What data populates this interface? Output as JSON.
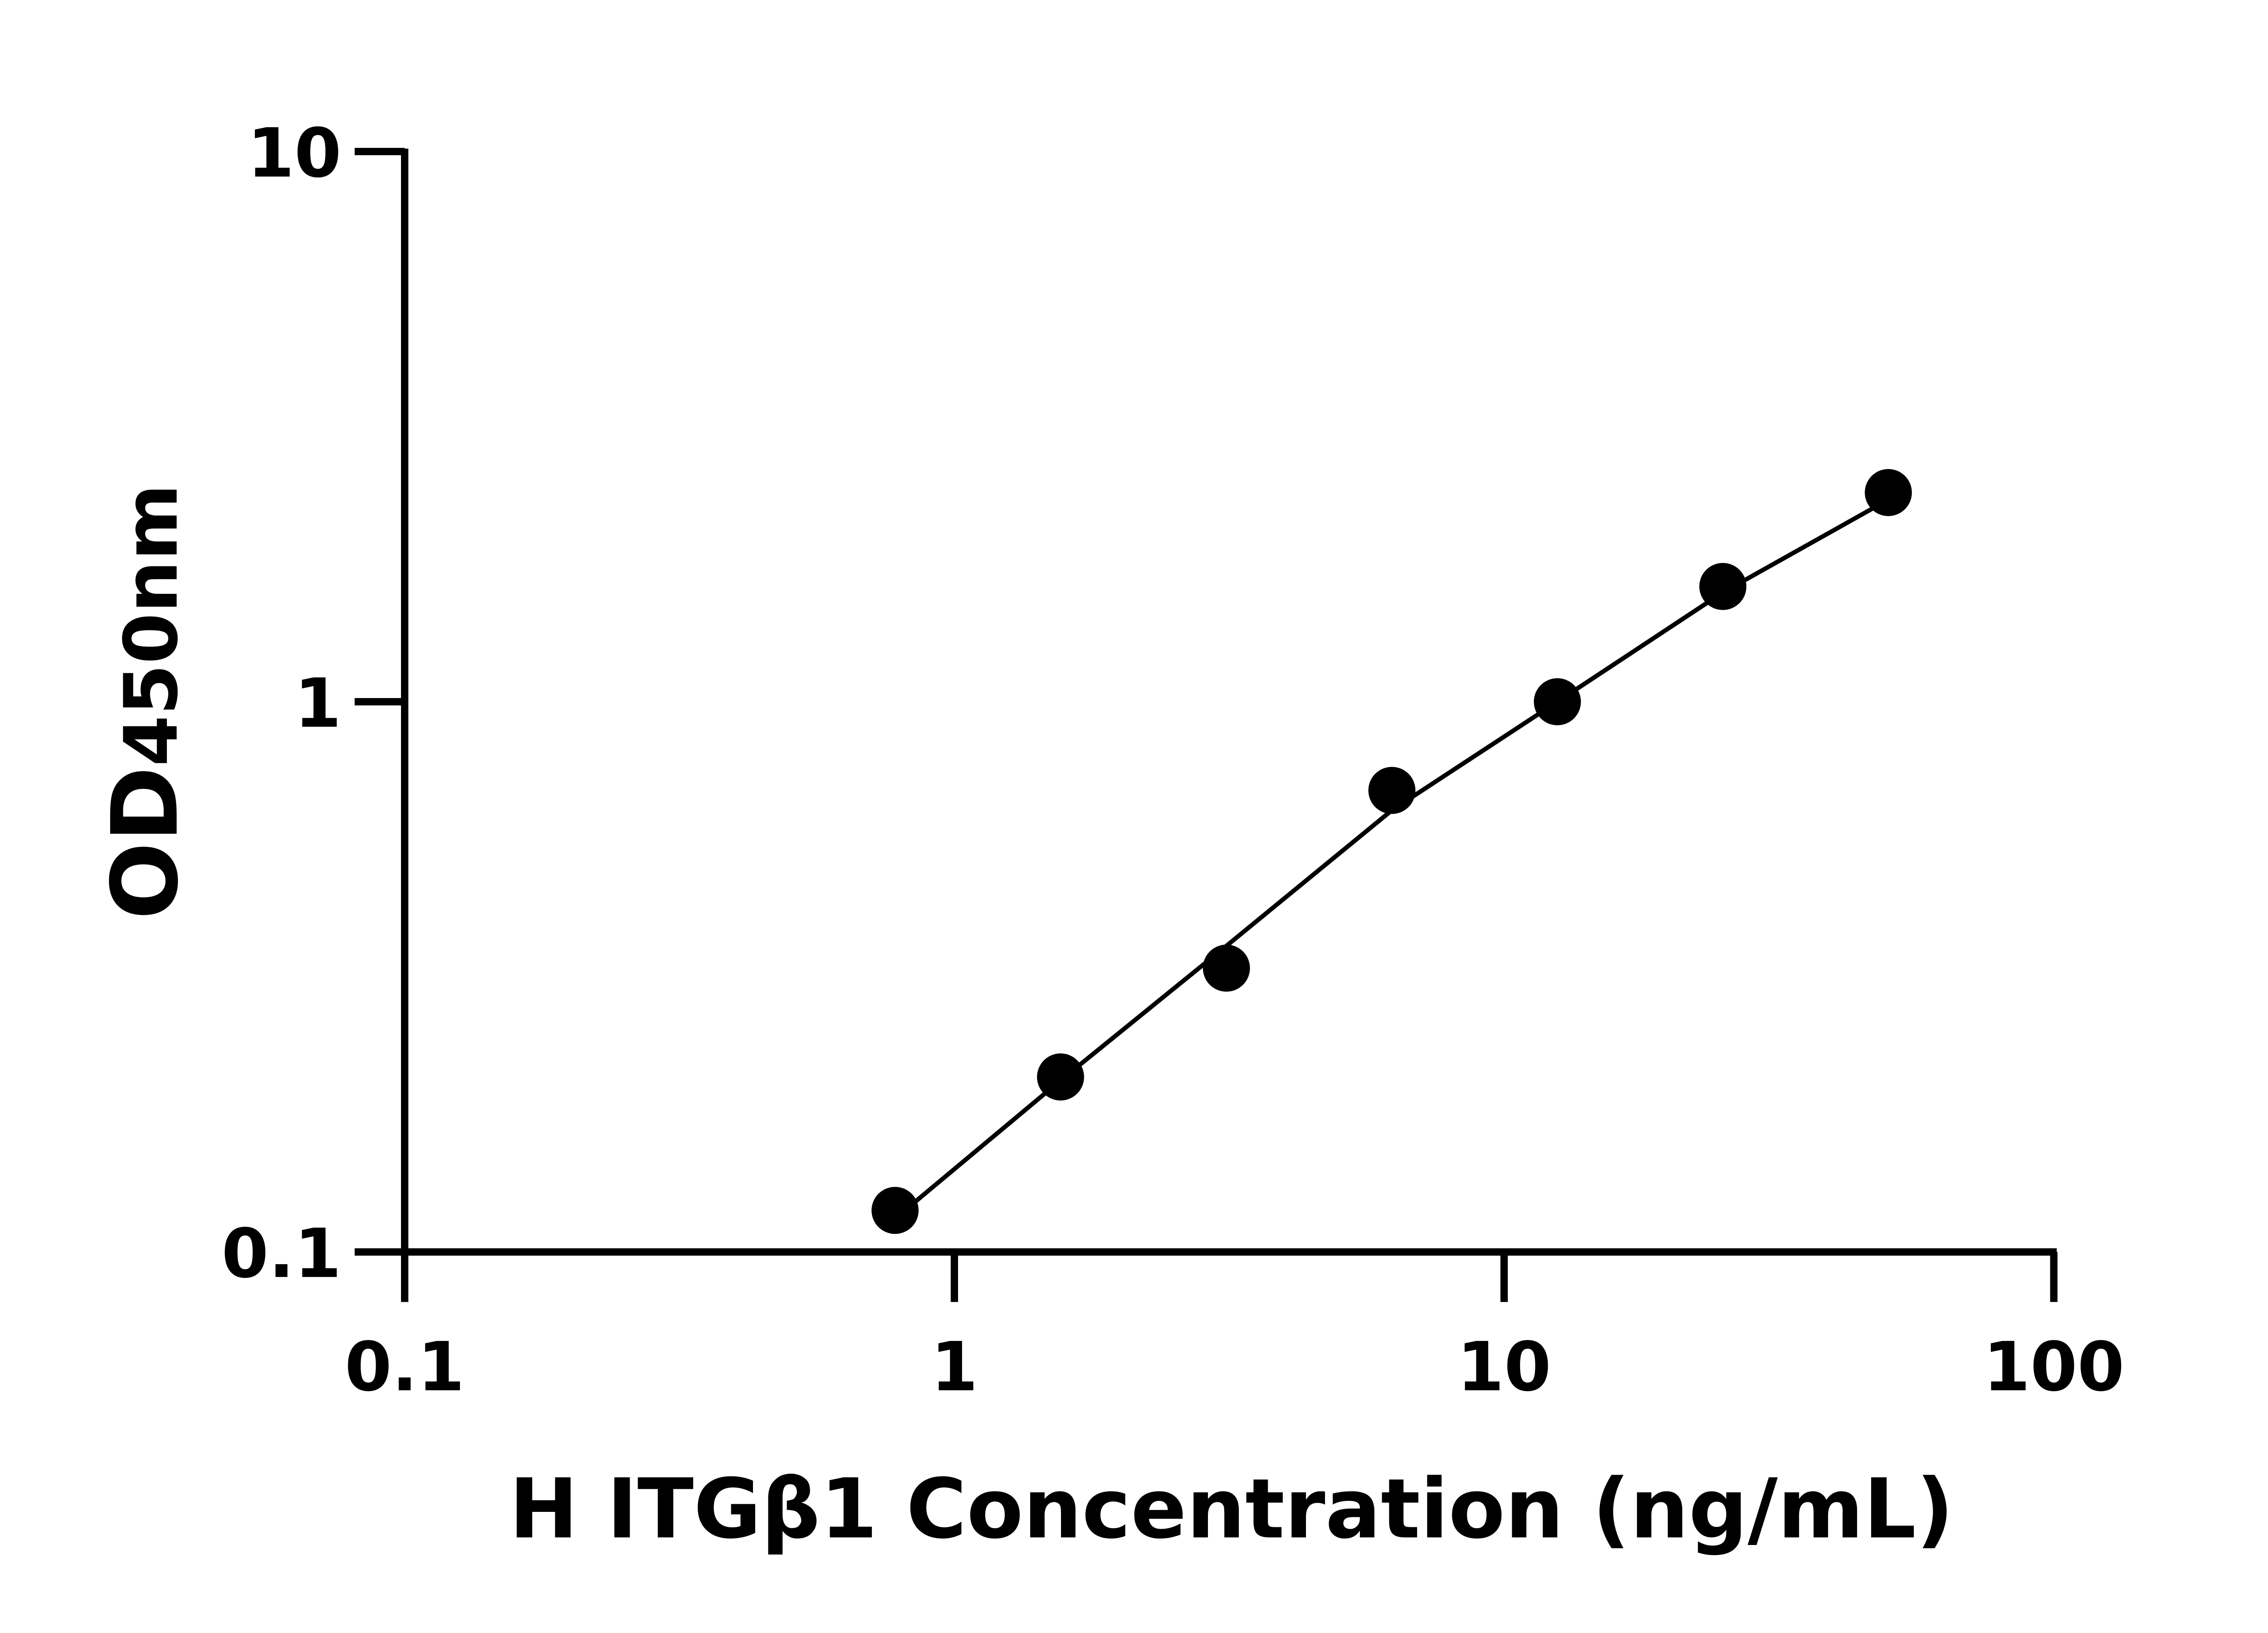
{
  "chart_data": {
    "type": "scatter",
    "xlabel": "H ITGβ1 Concentration (ng/mL)",
    "ylabel": "OD",
    "ylabel_sub": "450nm",
    "x_log": true,
    "y_log": true,
    "xlim": [
      0.1,
      100
    ],
    "xticks": [
      0.1,
      1,
      10,
      100
    ],
    "ylim": [
      0.1,
      10
    ],
    "yticks": [
      0.1,
      1,
      10
    ],
    "series": [
      {
        "color": "#000000",
        "x": [
          0.78,
          1.56,
          3.125,
          6.25,
          12.5,
          25,
          50
        ],
        "values": [
          0.119,
          0.208,
          0.328,
          0.69,
          1.0,
          1.62,
          2.4
        ]
      }
    ],
    "fit": {
      "color": "#000000",
      "x": [
        0.78,
        1.56,
        3.125,
        6.25,
        12.5,
        25,
        50
      ],
      "values": [
        0.115,
        0.205,
        0.36,
        0.635,
        1.0,
        1.58,
        2.33
      ]
    }
  }
}
